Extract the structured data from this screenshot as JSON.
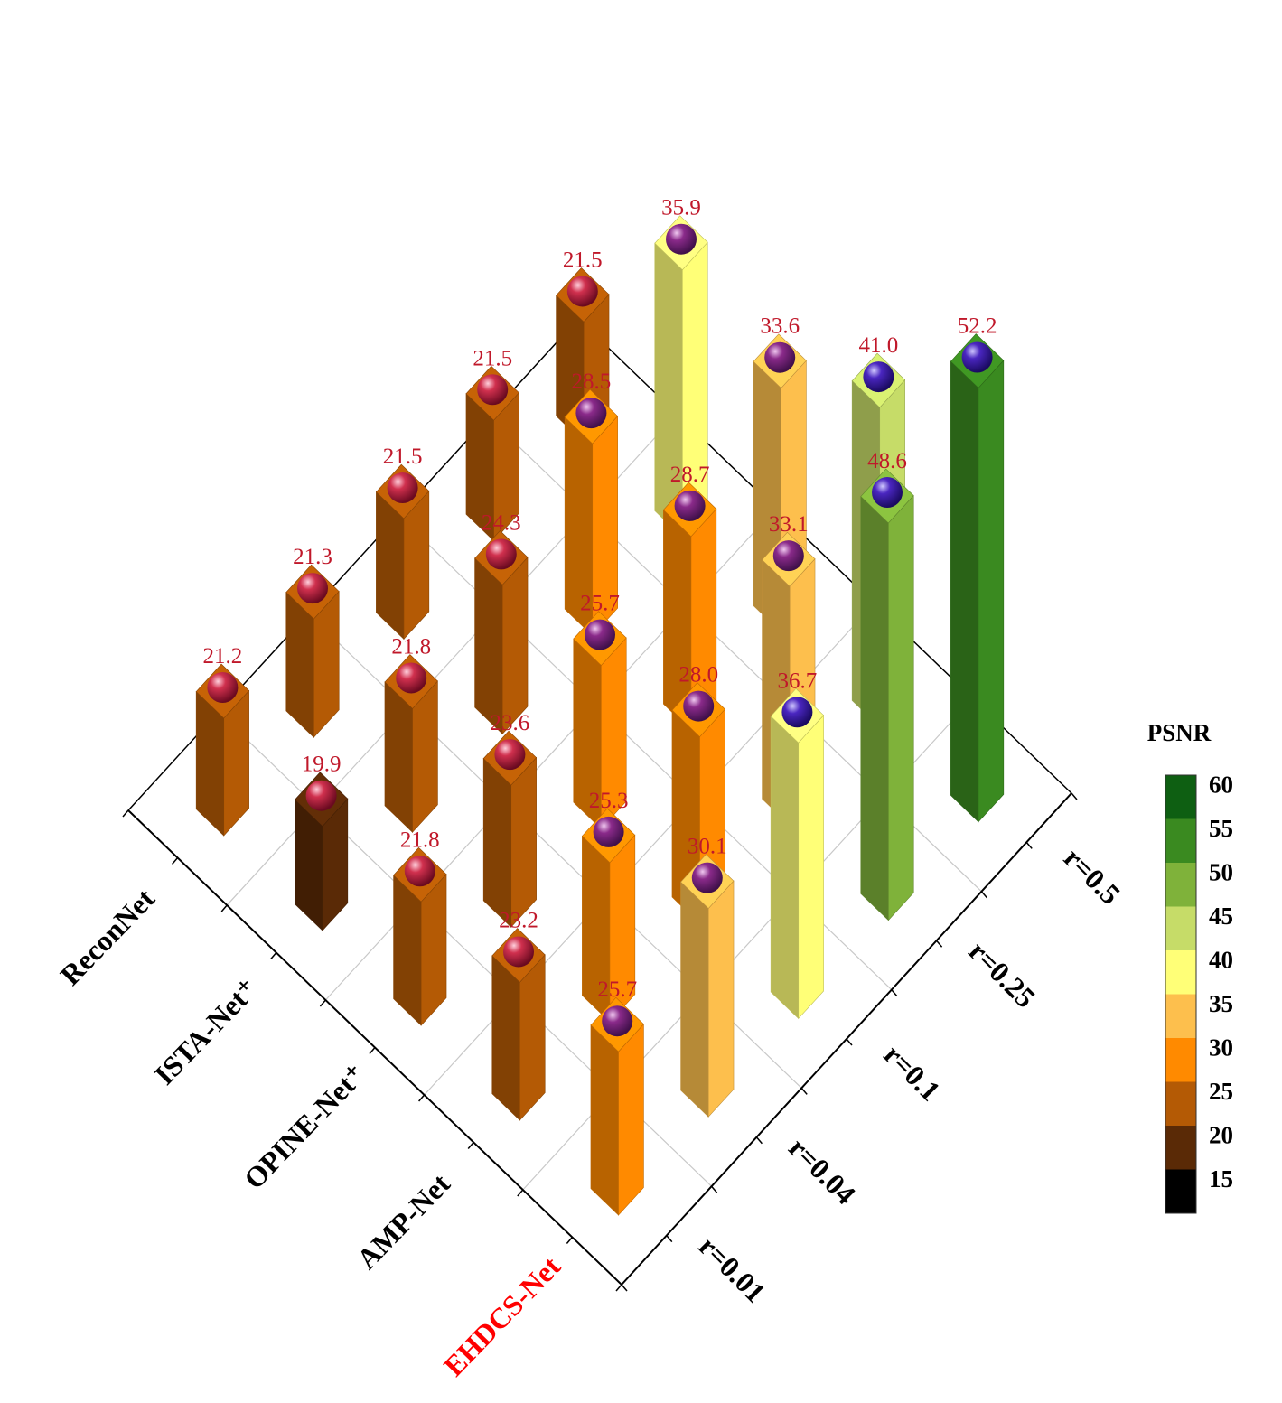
{
  "chart_data": {
    "type": "bar3d",
    "methods": [
      "EHDCS-Net",
      "AMP-Net",
      "OPINE-Net⁺",
      "ISTA-Net⁺",
      "ReconNet"
    ],
    "ratios": [
      "r=0.01",
      "r=0.04",
      "r=0.1",
      "r=0.25",
      "r=0.5"
    ],
    "values": [
      [
        25.7,
        30.1,
        36.7,
        48.6,
        52.2
      ],
      [
        23.2,
        25.3,
        28.0,
        33.1,
        41.0
      ],
      [
        21.8,
        23.6,
        25.7,
        28.7,
        33.6
      ],
      [
        19.9,
        21.8,
        24.3,
        28.5,
        35.9
      ],
      [
        21.2,
        21.3,
        21.5,
        21.5,
        21.5
      ]
    ],
    "highlight_method": "EHDCS-Net",
    "highlight_color": "#ff0000",
    "value_label_color": "#c0182a",
    "colorbar": {
      "title": "PSNR",
      "ticks": [
        "60",
        "55",
        "50",
        "45",
        "40",
        "35",
        "30",
        "25",
        "20",
        "15"
      ],
      "bins": [
        {
          "min": 15,
          "max": 20,
          "color": "#5a2a06"
        },
        {
          "min": 20,
          "max": 25,
          "color": "#b45a05"
        },
        {
          "min": 25,
          "max": 30,
          "color": "#ff8a00"
        },
        {
          "min": 30,
          "max": 35,
          "color": "#fdbf4d"
        },
        {
          "min": 35,
          "max": 40,
          "color": "#ffff77"
        },
        {
          "min": 40,
          "max": 45,
          "color": "#c6dc68"
        },
        {
          "min": 45,
          "max": 50,
          "color": "#7fb23a"
        },
        {
          "min": 50,
          "max": 55,
          "color": "#3a8a20"
        },
        {
          "min": 55,
          "max": 60,
          "color": "#0e5f12"
        }
      ],
      "top_color": "#0e5f12",
      "bottom_color": "#000000"
    },
    "zlim": [
      15,
      60
    ],
    "sphere_colors": {
      "low": "#b01a3a",
      "mid": "#7a1a78",
      "high": "#3a18a8"
    }
  }
}
